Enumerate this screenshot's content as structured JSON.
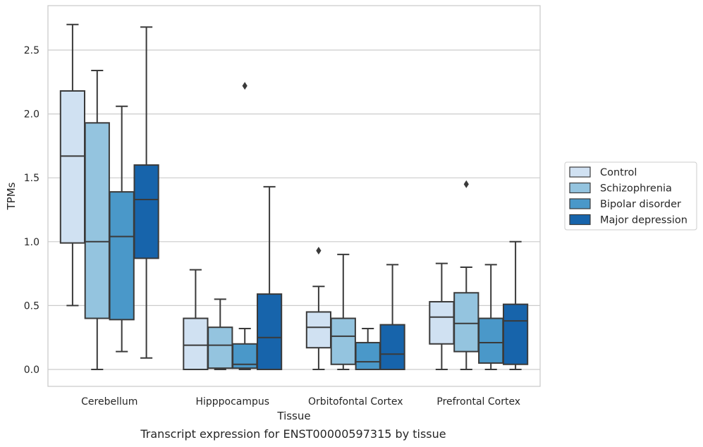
{
  "caption": "Transcript expression for ENST00000597315 by tissue",
  "chart_data": {
    "type": "box",
    "xlabel": "Tissue",
    "ylabel": "TPMs",
    "ylim": [
      -0.13,
      2.85
    ],
    "yticks": [
      "0.0",
      "0.5",
      "1.0",
      "1.5",
      "2.0",
      "2.5"
    ],
    "grid": "horizontal",
    "legend_placement": "right",
    "categories": [
      "Cerebellum",
      "Hipppocampus",
      "Orbitofontal Cortex",
      "Prefrontal Cortex"
    ],
    "series": [
      {
        "name": "Control",
        "color": "#d0e1f2",
        "boxes": [
          {
            "min": 0.5,
            "q1": 0.99,
            "median": 1.67,
            "q3": 2.18,
            "max": 2.7,
            "outliers": []
          },
          {
            "min": 0.0,
            "q1": 0.0,
            "median": 0.19,
            "q3": 0.4,
            "max": 0.78,
            "outliers": []
          },
          {
            "min": 0.0,
            "q1": 0.17,
            "median": 0.33,
            "q3": 0.45,
            "max": 0.65,
            "outliers": [
              0.93
            ]
          },
          {
            "min": 0.0,
            "q1": 0.2,
            "median": 0.41,
            "q3": 0.53,
            "max": 0.83,
            "outliers": []
          }
        ]
      },
      {
        "name": "Schizophrenia",
        "color": "#94c4df",
        "boxes": [
          {
            "min": 0.0,
            "q1": 0.4,
            "median": 1.0,
            "q3": 1.93,
            "max": 2.34,
            "outliers": []
          },
          {
            "min": 0.0,
            "q1": 0.01,
            "median": 0.19,
            "q3": 0.33,
            "max": 0.55,
            "outliers": []
          },
          {
            "min": 0.0,
            "q1": 0.04,
            "median": 0.26,
            "q3": 0.4,
            "max": 0.9,
            "outliers": []
          },
          {
            "min": 0.0,
            "q1": 0.14,
            "median": 0.36,
            "q3": 0.6,
            "max": 0.8,
            "outliers": [
              1.45
            ]
          }
        ]
      },
      {
        "name": "Bipolar disorder",
        "color": "#4a98c9",
        "boxes": [
          {
            "min": 0.14,
            "q1": 0.39,
            "median": 1.04,
            "q3": 1.39,
            "max": 2.06,
            "outliers": []
          },
          {
            "min": 0.0,
            "q1": 0.01,
            "median": 0.04,
            "q3": 0.2,
            "max": 0.32,
            "outliers": [
              2.22
            ]
          },
          {
            "min": 0.0,
            "q1": 0.0,
            "median": 0.06,
            "q3": 0.21,
            "max": 0.32,
            "outliers": []
          },
          {
            "min": 0.0,
            "q1": 0.05,
            "median": 0.21,
            "q3": 0.4,
            "max": 0.82,
            "outliers": []
          }
        ]
      },
      {
        "name": "Major depression",
        "color": "#1764ab",
        "boxes": [
          {
            "min": 0.09,
            "q1": 0.87,
            "median": 1.33,
            "q3": 1.6,
            "max": 2.68,
            "outliers": []
          },
          {
            "min": 0.0,
            "q1": 0.0,
            "median": 0.25,
            "q3": 0.59,
            "max": 1.43,
            "outliers": []
          },
          {
            "min": 0.0,
            "q1": 0.0,
            "median": 0.12,
            "q3": 0.35,
            "max": 0.82,
            "outliers": []
          },
          {
            "min": 0.0,
            "q1": 0.04,
            "median": 0.38,
            "q3": 0.51,
            "max": 1.0,
            "outliers": []
          }
        ]
      }
    ]
  }
}
